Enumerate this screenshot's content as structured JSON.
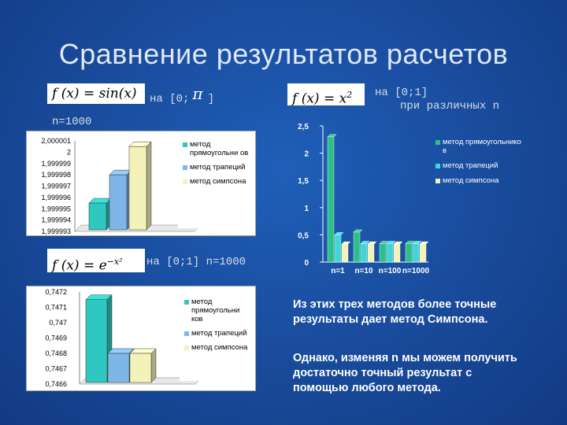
{
  "title": "Сравнение результатов расчетов",
  "formula_sin": "f (x) = sin(x)",
  "range_sin_prefix": "на [0;",
  "range_sin_pi": "π",
  "range_sin_suffix": "]",
  "n_sin": "n=1000",
  "formula_sq": "f (x) = x",
  "formula_sq_exp": "2",
  "range_sq": "на [0;1]",
  "range_sq_note": "при различных n",
  "formula_exp": "f (x) = e",
  "formula_exp_exp": "−x²",
  "range_exp": "на [0;1] n=1000",
  "notes": [
    "Из этих трех методов более точные результаты дает метод Симпсона.",
    "Однако, изменяя n мы можем получить достаточно точный результат с помощью любого метода."
  ],
  "colors": {
    "rect": "#2ec8c0",
    "trap": "#7fb6e8",
    "simp": "#f4f2b8",
    "rect_sq": "#2ebf88",
    "trap_sq": "#3fd6d8",
    "simp_sq": "#f4f2b8"
  },
  "chart_data": [
    {
      "type": "bar",
      "title": "",
      "series": [
        {
          "name": "метод прямоугольников",
          "values": [
            1.9999955
          ]
        },
        {
          "name": "метод трапеций",
          "values": [
            1.999998
          ]
        },
        {
          "name": "метод симпсона",
          "values": [
            2.0000005
          ]
        }
      ],
      "categories": [
        ""
      ],
      "yticks": [
        "2,000001",
        "2",
        "1,999999",
        "1,999998",
        "1,999997",
        "1,999996",
        "1,999995",
        "1,999994",
        "1,999993"
      ],
      "ylim": [
        1.999993,
        2.000001
      ],
      "legend": [
        "метод прямоугольни ов",
        "метод трапеций",
        "метод симпсона"
      ],
      "legend_position": "right"
    },
    {
      "type": "bar",
      "title": "",
      "categories": [
        "n=1",
        "n=10",
        "n=100",
        "n=1000"
      ],
      "series": [
        {
          "name": "метод прямоугольников",
          "values": [
            2.3,
            0.55,
            0.34,
            0.34
          ]
        },
        {
          "name": "метод трапеций",
          "values": [
            0.5,
            0.34,
            0.34,
            0.34
          ]
        },
        {
          "name": "метод симпсона",
          "values": [
            0.33,
            0.33,
            0.33,
            0.33
          ]
        }
      ],
      "yticks": [
        "2,5",
        "2",
        "1,5",
        "1",
        "0,5",
        "0"
      ],
      "ylim": [
        0,
        2.5
      ],
      "legend": [
        "метод прямоугольнико в",
        "метод трапеций",
        "метод симпсона"
      ],
      "legend_position": "right"
    },
    {
      "type": "bar",
      "title": "",
      "categories": [
        ""
      ],
      "series": [
        {
          "name": "метод прямоугольников",
          "values": [
            0.74715
          ]
        },
        {
          "name": "метод трапеций",
          "values": [
            0.7468
          ]
        },
        {
          "name": "метод симпсона",
          "values": [
            0.7468
          ]
        }
      ],
      "yticks": [
        "0,7472",
        "0,7471",
        "0,747",
        "0,7469",
        "0,7468",
        "0,7467",
        "0,7466"
      ],
      "ylim": [
        0.7466,
        0.7472
      ],
      "legend": [
        "метод прямоугольни ков",
        "метод трапеций",
        "метод симпсона"
      ],
      "legend_position": "right"
    }
  ]
}
